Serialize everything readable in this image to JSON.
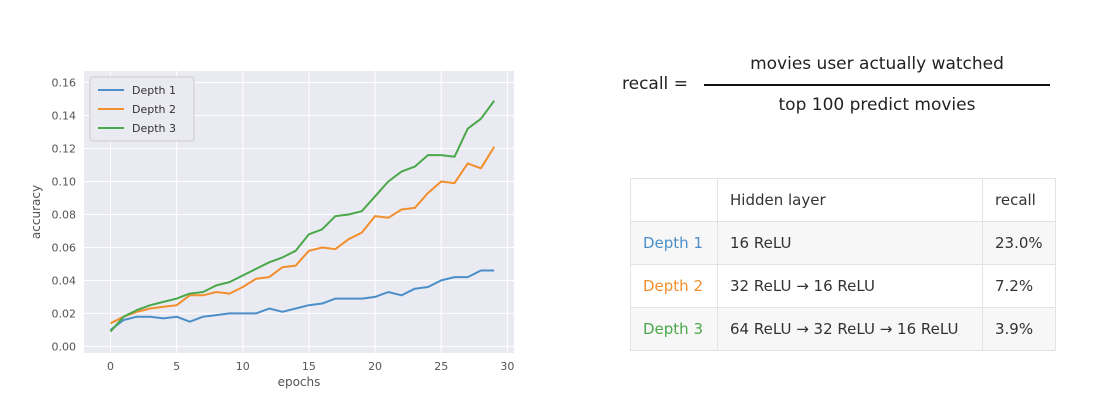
{
  "chart_data": {
    "type": "line",
    "xlabel": "epochs",
    "ylabel": "accuracy",
    "xlim": [
      -2,
      30.5
    ],
    "ylim": [
      -0.004,
      0.167
    ],
    "xticks": [
      0,
      5,
      10,
      15,
      20,
      25,
      30
    ],
    "yticks": [
      0.0,
      0.02,
      0.04,
      0.06,
      0.08,
      0.1,
      0.12,
      0.14,
      0.16
    ],
    "ytick_labels": [
      "0.00",
      "0.02",
      "0.04",
      "0.06",
      "0.08",
      "0.10",
      "0.12",
      "0.14",
      "0.16"
    ],
    "grid": true,
    "legend_position": "top-left",
    "x": [
      0,
      1,
      2,
      3,
      4,
      5,
      6,
      7,
      8,
      9,
      10,
      11,
      12,
      13,
      14,
      15,
      16,
      17,
      18,
      19,
      20,
      21,
      22,
      23,
      24,
      25,
      26,
      27,
      28,
      29
    ],
    "series": [
      {
        "name": "Depth 1",
        "color": "#4c8fc8",
        "values": [
          0.01,
          0.016,
          0.018,
          0.018,
          0.017,
          0.018,
          0.015,
          0.018,
          0.019,
          0.02,
          0.02,
          0.02,
          0.023,
          0.021,
          0.023,
          0.025,
          0.026,
          0.029,
          0.029,
          0.029,
          0.03,
          0.033,
          0.031,
          0.035,
          0.036,
          0.04,
          0.042,
          0.042,
          0.046,
          0.046
        ]
      },
      {
        "name": "Depth 2",
        "color": "#f28e2c",
        "values": [
          0.014,
          0.018,
          0.021,
          0.023,
          0.024,
          0.025,
          0.031,
          0.031,
          0.033,
          0.032,
          0.036,
          0.041,
          0.042,
          0.048,
          0.049,
          0.058,
          0.06,
          0.059,
          0.065,
          0.069,
          0.079,
          0.078,
          0.083,
          0.084,
          0.093,
          0.1,
          0.099,
          0.111,
          0.108,
          0.121
        ]
      },
      {
        "name": "Depth 3",
        "color": "#4aa84a",
        "values": [
          0.009,
          0.018,
          0.022,
          0.025,
          0.027,
          0.029,
          0.032,
          0.033,
          0.037,
          0.039,
          0.043,
          0.047,
          0.051,
          0.054,
          0.058,
          0.068,
          0.071,
          0.079,
          0.08,
          0.082,
          0.091,
          0.1,
          0.106,
          0.109,
          0.116,
          0.116,
          0.115,
          0.132,
          0.138,
          0.149
        ]
      }
    ]
  },
  "formula": {
    "lhs": "recall =",
    "numerator": "movies user actually watched",
    "denominator": "top 100 predict movies"
  },
  "table": {
    "headers": [
      "",
      "Hidden layer",
      "recall"
    ],
    "rows": [
      {
        "name": "Depth 1",
        "hidden": "16 ReLU",
        "recall": "23.0%",
        "color": "#4c8fc8"
      },
      {
        "name": "Depth 2",
        "hidden": "32 ReLU → 16 ReLU",
        "recall": "7.2%",
        "color": "#f28e2c"
      },
      {
        "name": "Depth 3",
        "hidden": "64 ReLU → 32 ReLU → 16 ReLU",
        "recall": "3.9%",
        "color": "#4aa84a"
      }
    ]
  }
}
